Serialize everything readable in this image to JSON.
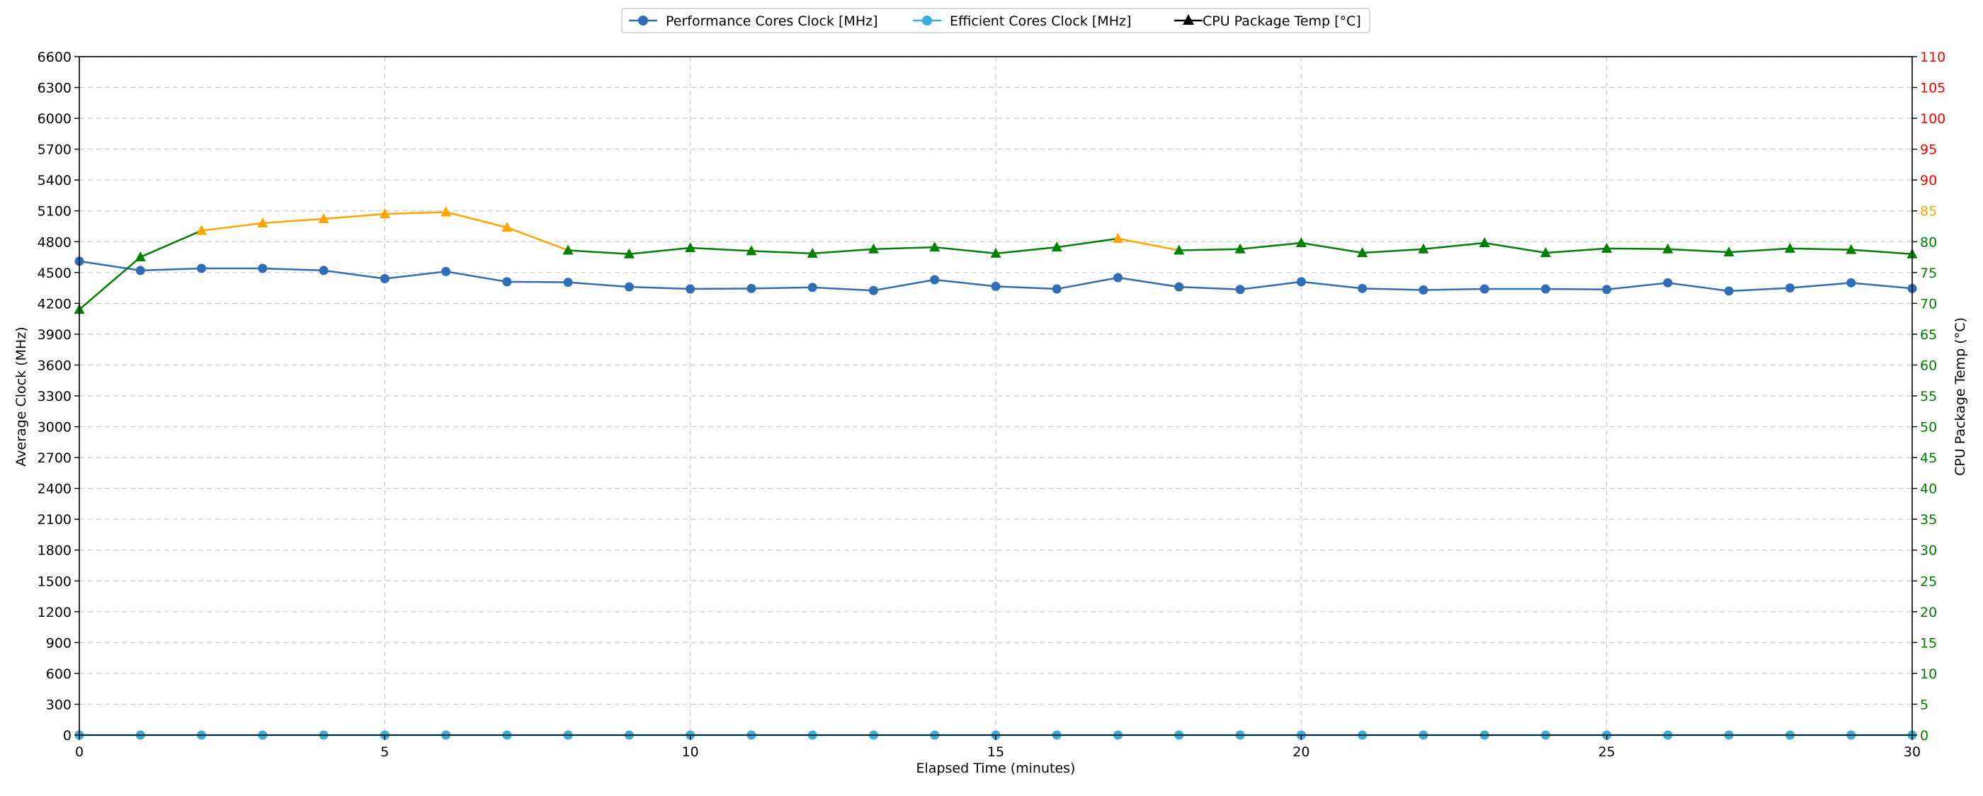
{
  "chart_data": {
    "type": "line",
    "xlabel": "Elapsed Time (minutes)",
    "ylabel": "Average Clock (MHz)",
    "y2label": "CPU Package Temp (°C)",
    "xlim": [
      0,
      30
    ],
    "ylim": [
      0,
      6600
    ],
    "y2lim": [
      0,
      110
    ],
    "x_ticks": [
      0,
      5,
      10,
      15,
      20,
      25,
      30
    ],
    "y_ticks": [
      0,
      300,
      600,
      900,
      1200,
      1500,
      1800,
      2100,
      2400,
      2700,
      3000,
      3300,
      3600,
      3900,
      4200,
      4500,
      4800,
      5100,
      5400,
      5700,
      6000,
      6300,
      6600
    ],
    "y2_ticks": [
      0,
      5,
      10,
      15,
      20,
      25,
      30,
      35,
      40,
      45,
      50,
      55,
      60,
      65,
      70,
      75,
      80,
      85,
      90,
      95,
      100,
      105,
      110
    ],
    "grid": true,
    "legend_position": "top-center",
    "x": [
      0,
      1,
      2,
      3,
      4,
      5,
      6,
      7,
      8,
      9,
      10,
      11,
      12,
      13,
      14,
      15,
      16,
      17,
      18,
      19,
      20,
      21,
      22,
      23,
      24,
      25,
      26,
      27,
      28,
      29,
      30
    ],
    "series": [
      {
        "name": "Performance Cores Clock [MHz]",
        "axis": "left",
        "color": "#2f6db5",
        "marker": "circle",
        "values": [
          4610,
          4520,
          4540,
          4540,
          4520,
          4440,
          4510,
          4410,
          4405,
          4360,
          4340,
          4345,
          4355,
          4325,
          4430,
          4365,
          4340,
          4450,
          4360,
          4335,
          4410,
          4345,
          4330,
          4340,
          4340,
          4335,
          4400,
          4320,
          4350,
          4400,
          4345
        ]
      },
      {
        "name": "Efficient Cores Clock [MHz]",
        "axis": "left",
        "color": "#3aaed8",
        "marker": "circle",
        "values": [
          0,
          0,
          0,
          0,
          0,
          0,
          0,
          0,
          0,
          0,
          0,
          0,
          0,
          0,
          0,
          0,
          0,
          0,
          0,
          0,
          0,
          0,
          0,
          0,
          0,
          0,
          0,
          0,
          0,
          0,
          0
        ]
      },
      {
        "name": "CPU Package Temp [°C]",
        "axis": "right",
        "color": "#000000",
        "line_color_normal": "#008000",
        "line_color_warm": "#ffa500",
        "warm_threshold": 80,
        "marker": "triangle",
        "values": [
          69,
          77.5,
          81.8,
          83,
          83.7,
          84.5,
          84.8,
          82.3,
          78.6,
          78,
          79,
          78.5,
          78.1,
          78.8,
          79.1,
          78.1,
          79.1,
          80.5,
          78.6,
          78.8,
          79.8,
          78.2,
          78.8,
          79.8,
          78.2,
          78.9,
          78.8,
          78.3,
          78.9,
          78.7,
          78
        ]
      }
    ],
    "y2_tick_colors": {
      "normal": "#008000",
      "warm": "#ffa500",
      "hot": "#ff0000",
      "warm_from": 85,
      "hot_from": 90
    }
  }
}
